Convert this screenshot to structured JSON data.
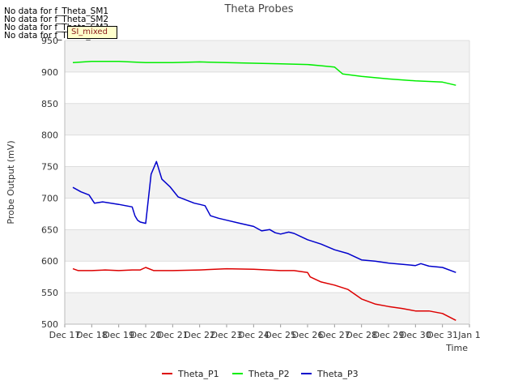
{
  "no_data_notes": [
    "No data for f_Theta_SM1",
    "No data for f_Theta_SM2",
    "No data for f_Theta_SM3",
    "No data for f_Theta_SM4"
  ],
  "badge": "SI_mixed",
  "colors": {
    "p1": "#dd0000",
    "p2": "#00ee00",
    "p3": "#0000cc",
    "band": "#f2f2f2",
    "grid": "#dddddd"
  },
  "chart_data": {
    "type": "line",
    "title": "Theta Probes",
    "xlabel": "Time",
    "ylabel": "Probe Output (mV)",
    "ylim": [
      500,
      950
    ],
    "yticks": [
      500,
      550,
      600,
      650,
      700,
      750,
      800,
      850,
      900,
      950
    ],
    "x_tick_labels": [
      "Dec 17",
      "Dec 18",
      "Dec 19",
      "Dec 20",
      "Dec 21",
      "Dec 22",
      "Dec 23",
      "Dec 24",
      "Dec 25",
      "Dec 26",
      "Dec 27",
      "Dec 28",
      "Dec 29",
      "Dec 30",
      "Dec 31",
      "Jan 1"
    ],
    "legend_position": "bottom",
    "grid": true,
    "x_unit": "day offset from Dec 17",
    "series": [
      {
        "name": "Theta_P1",
        "color": "#dd0000",
        "x": [
          0.3,
          0.5,
          1.0,
          1.5,
          2.0,
          2.5,
          2.8,
          3.0,
          3.3,
          4.0,
          5.0,
          6.0,
          7.0,
          8.0,
          8.5,
          9.0,
          9.1,
          9.5,
          10.0,
          10.5,
          11.0,
          11.5,
          12.0,
          12.5,
          13.0,
          13.5,
          14.0,
          14.5
        ],
        "y": [
          588,
          585,
          585,
          586,
          585,
          586,
          586,
          590,
          585,
          585,
          586,
          588,
          587,
          585,
          585,
          582,
          575,
          567,
          562,
          555,
          540,
          532,
          528,
          525,
          521,
          521,
          517,
          506
        ]
      },
      {
        "name": "Theta_P2",
        "color": "#00ee00",
        "x": [
          0.3,
          1.0,
          2.0,
          3.0,
          4.0,
          5.0,
          6.0,
          7.0,
          8.0,
          9.0,
          9.5,
          10.0,
          10.3,
          11.0,
          12.0,
          13.0,
          14.0,
          14.5
        ],
        "y": [
          915,
          917,
          917,
          915,
          915,
          916,
          915,
          914,
          913,
          912,
          910,
          908,
          897,
          893,
          889,
          886,
          884,
          879
        ]
      },
      {
        "name": "Theta_P3",
        "color": "#0000cc",
        "x": [
          0.3,
          0.6,
          0.9,
          1.1,
          1.4,
          2.0,
          2.5,
          2.6,
          2.7,
          2.8,
          3.0,
          3.2,
          3.4,
          3.6,
          3.9,
          4.2,
          4.5,
          4.8,
          5.0,
          5.2,
          5.4,
          5.7,
          6.0,
          6.5,
          7.0,
          7.3,
          7.6,
          7.8,
          8.0,
          8.3,
          8.5,
          8.8,
          9.0,
          9.5,
          10.0,
          10.5,
          11.0,
          11.5,
          12.0,
          12.5,
          13.0,
          13.2,
          13.5,
          14.0,
          14.5
        ],
        "y": [
          717,
          710,
          705,
          692,
          694,
          690,
          686,
          672,
          665,
          662,
          660,
          738,
          758,
          730,
          718,
          702,
          697,
          692,
          690,
          688,
          672,
          668,
          665,
          660,
          655,
          648,
          650,
          645,
          643,
          646,
          644,
          638,
          634,
          627,
          618,
          612,
          602,
          600,
          597,
          595,
          593,
          596,
          592,
          590,
          582
        ]
      }
    ]
  }
}
